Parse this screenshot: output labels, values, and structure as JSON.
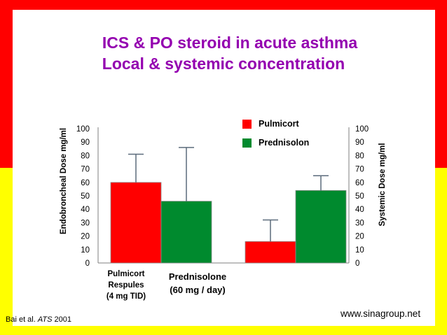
{
  "title": {
    "line1": "ICS & PO steroid in acute asthma",
    "line2": "Local & systemic concentration"
  },
  "colors": {
    "title": "#9400b0",
    "pulmicort": "#ff0000",
    "prednisolon": "#008a2e",
    "frame_top": "#ff0000",
    "frame_bottom": "#ffff00"
  },
  "chart_data": {
    "type": "bar",
    "categories": [
      "Pulmicort\nRespules\n(4 mg TID)",
      "Prednisolone\n(60 mg / day)"
    ],
    "series": [
      {
        "name": "Pulmicort",
        "values": [
          60,
          16
        ],
        "error_upper": [
          81,
          32
        ]
      },
      {
        "name": "Prednisolon",
        "values": [
          46,
          54
        ],
        "error_upper": [
          86,
          65
        ]
      }
    ],
    "ylabel": "Endobroncheal Dose mg/ml",
    "y2label": "Systemic Dose mg/ml",
    "ylim": [
      0,
      100
    ],
    "yticks": [
      "0",
      "10",
      "20",
      "30",
      "40",
      "50",
      "60",
      "70",
      "80",
      "90",
      "100"
    ],
    "grid": false,
    "legend_position": "top-right",
    "groups": [
      "Endobroncheal",
      "Systemic"
    ]
  },
  "citation": {
    "authors": "Bai et al. ",
    "journal": "ATS",
    "year": " 2001"
  },
  "website": "www.sinagroup.net"
}
